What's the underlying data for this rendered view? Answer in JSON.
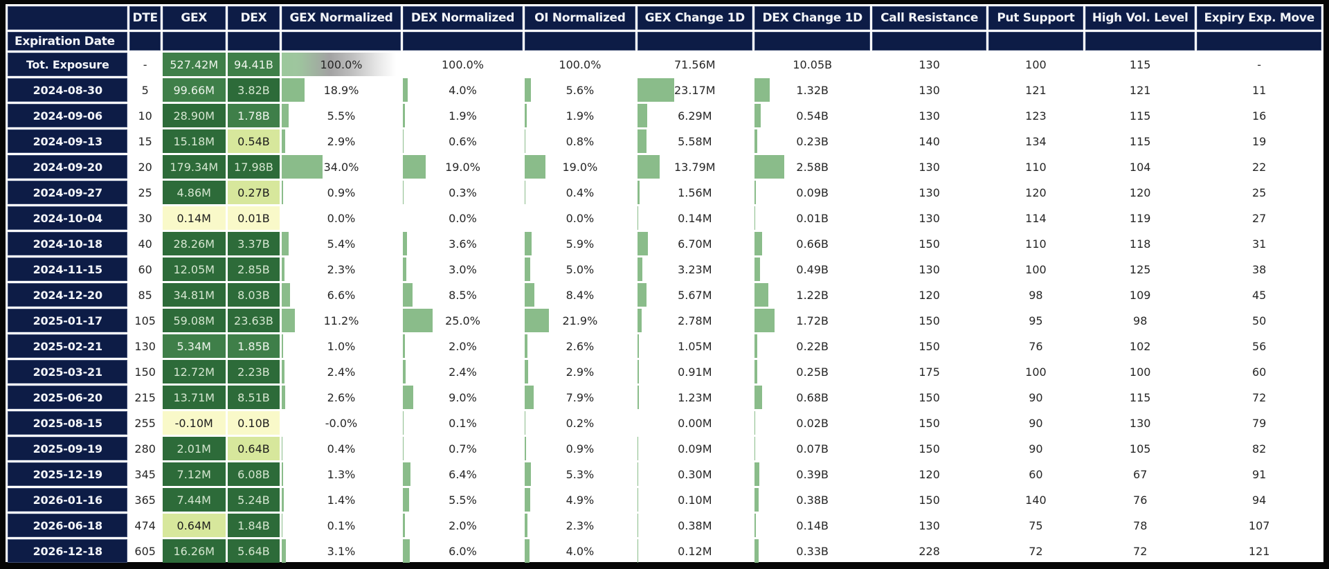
{
  "colors": {
    "navy": "#0d1c46",
    "bar_green": "#8abc8a",
    "frame_black": "#060606",
    "tones": {
      "t0": "#f9f9c9",
      "t1": "#d7e79c",
      "t2": "#3f7f49",
      "t3": "#2d6b39"
    },
    "tone_text": {
      "t0": "#1c1c1c",
      "t1": "#1c1c1c",
      "t2": "#eef5ec",
      "t3": "#d6e7d1"
    }
  },
  "table": {
    "columns": [
      "",
      "DTE",
      "GEX",
      "DEX",
      "GEX Normalized",
      "DEX Normalized",
      "OI Normalized",
      "GEX Change 1D",
      "DEX Change 1D",
      "Call Resistance",
      "Put Support",
      "High Vol. Level",
      "Expiry Exp. Move"
    ],
    "sub_header": "Expiration Date",
    "rows": [
      {
        "label": "Tot. Exposure",
        "dte": "-",
        "gex": {
          "t": "527.42M",
          "tone": "t2"
        },
        "dex": {
          "t": "94.41B",
          "tone": "t2"
        },
        "gexn": {
          "t": "100.0%",
          "bar": 100,
          "grad": true
        },
        "dexn": {
          "t": "100.0%",
          "bar": 0
        },
        "oin": {
          "t": "100.0%",
          "bar": 0
        },
        "gexc": {
          "t": "71.56M",
          "bar": 0
        },
        "dexc": {
          "t": "10.05B",
          "bar": 0
        },
        "call": "130",
        "put": "100",
        "hvl": "115",
        "move": "-"
      },
      {
        "label": "2024-08-30",
        "dte": "5",
        "gex": {
          "t": "99.66M",
          "tone": "t2"
        },
        "dex": {
          "t": "3.82B",
          "tone": "t3"
        },
        "gexn": {
          "t": "18.9%",
          "bar": 18.9
        },
        "dexn": {
          "t": "4.0%",
          "bar": 4.0
        },
        "oin": {
          "t": "5.6%",
          "bar": 5.6
        },
        "gexc": {
          "t": "23.17M",
          "bar": 32.4
        },
        "dexc": {
          "t": "1.32B",
          "bar": 13.1
        },
        "call": "130",
        "put": "121",
        "hvl": "121",
        "move": "11"
      },
      {
        "label": "2024-09-06",
        "dte": "10",
        "gex": {
          "t": "28.90M",
          "tone": "t3"
        },
        "dex": {
          "t": "1.78B",
          "tone": "t2"
        },
        "gexn": {
          "t": "5.5%",
          "bar": 5.5
        },
        "dexn": {
          "t": "1.9%",
          "bar": 1.9
        },
        "oin": {
          "t": "1.9%",
          "bar": 1.9
        },
        "gexc": {
          "t": "6.29M",
          "bar": 8.8
        },
        "dexc": {
          "t": "0.54B",
          "bar": 5.4
        },
        "call": "130",
        "put": "123",
        "hvl": "115",
        "move": "16"
      },
      {
        "label": "2024-09-13",
        "dte": "15",
        "gex": {
          "t": "15.18M",
          "tone": "t3"
        },
        "dex": {
          "t": "0.54B",
          "tone": "t1"
        },
        "gexn": {
          "t": "2.9%",
          "bar": 2.9
        },
        "dexn": {
          "t": "0.6%",
          "bar": 0.6
        },
        "oin": {
          "t": "0.8%",
          "bar": 0.8
        },
        "gexc": {
          "t": "5.58M",
          "bar": 7.8
        },
        "dexc": {
          "t": "0.23B",
          "bar": 2.3
        },
        "call": "140",
        "put": "134",
        "hvl": "115",
        "move": "19"
      },
      {
        "label": "2024-09-20",
        "dte": "20",
        "gex": {
          "t": "179.34M",
          "tone": "t3"
        },
        "dex": {
          "t": "17.98B",
          "tone": "t3"
        },
        "gexn": {
          "t": "34.0%",
          "bar": 34.0
        },
        "dexn": {
          "t": "19.0%",
          "bar": 19.0
        },
        "oin": {
          "t": "19.0%",
          "bar": 19.0
        },
        "gexc": {
          "t": "13.79M",
          "bar": 19.3
        },
        "dexc": {
          "t": "2.58B",
          "bar": 25.7
        },
        "call": "130",
        "put": "110",
        "hvl": "104",
        "move": "22"
      },
      {
        "label": "2024-09-27",
        "dte": "25",
        "gex": {
          "t": "4.86M",
          "tone": "t3"
        },
        "dex": {
          "t": "0.27B",
          "tone": "t1"
        },
        "gexn": {
          "t": "0.9%",
          "bar": 0.9
        },
        "dexn": {
          "t": "0.3%",
          "bar": 0.3
        },
        "oin": {
          "t": "0.4%",
          "bar": 0.4
        },
        "gexc": {
          "t": "1.56M",
          "bar": 2.2
        },
        "dexc": {
          "t": "0.09B",
          "bar": 0.9
        },
        "call": "130",
        "put": "120",
        "hvl": "120",
        "move": "25"
      },
      {
        "label": "2024-10-04",
        "dte": "30",
        "gex": {
          "t": "0.14M",
          "tone": "t0"
        },
        "dex": {
          "t": "0.01B",
          "tone": "t0"
        },
        "gexn": {
          "t": "0.0%",
          "bar": 0
        },
        "dexn": {
          "t": "0.0%",
          "bar": 0
        },
        "oin": {
          "t": "0.0%",
          "bar": 0
        },
        "gexc": {
          "t": "0.14M",
          "bar": 0.2
        },
        "dexc": {
          "t": "0.01B",
          "bar": 0.1
        },
        "call": "130",
        "put": "114",
        "hvl": "119",
        "move": "27"
      },
      {
        "label": "2024-10-18",
        "dte": "40",
        "gex": {
          "t": "28.26M",
          "tone": "t3"
        },
        "dex": {
          "t": "3.37B",
          "tone": "t3"
        },
        "gexn": {
          "t": "5.4%",
          "bar": 5.4
        },
        "dexn": {
          "t": "3.6%",
          "bar": 3.6
        },
        "oin": {
          "t": "5.9%",
          "bar": 5.9
        },
        "gexc": {
          "t": "6.70M",
          "bar": 9.4
        },
        "dexc": {
          "t": "0.66B",
          "bar": 6.6
        },
        "call": "150",
        "put": "110",
        "hvl": "118",
        "move": "31"
      },
      {
        "label": "2024-11-15",
        "dte": "60",
        "gex": {
          "t": "12.05M",
          "tone": "t3"
        },
        "dex": {
          "t": "2.85B",
          "tone": "t3"
        },
        "gexn": {
          "t": "2.3%",
          "bar": 2.3
        },
        "dexn": {
          "t": "3.0%",
          "bar": 3.0
        },
        "oin": {
          "t": "5.0%",
          "bar": 5.0
        },
        "gexc": {
          "t": "3.23M",
          "bar": 4.5
        },
        "dexc": {
          "t": "0.49B",
          "bar": 4.9
        },
        "call": "130",
        "put": "100",
        "hvl": "125",
        "move": "38"
      },
      {
        "label": "2024-12-20",
        "dte": "85",
        "gex": {
          "t": "34.81M",
          "tone": "t3"
        },
        "dex": {
          "t": "8.03B",
          "tone": "t3"
        },
        "gexn": {
          "t": "6.6%",
          "bar": 6.6
        },
        "dexn": {
          "t": "8.5%",
          "bar": 8.5
        },
        "oin": {
          "t": "8.4%",
          "bar": 8.4
        },
        "gexc": {
          "t": "5.67M",
          "bar": 7.9
        },
        "dexc": {
          "t": "1.22B",
          "bar": 12.1
        },
        "call": "120",
        "put": "98",
        "hvl": "109",
        "move": "45"
      },
      {
        "label": "2025-01-17",
        "dte": "105",
        "gex": {
          "t": "59.08M",
          "tone": "t3"
        },
        "dex": {
          "t": "23.63B",
          "tone": "t3"
        },
        "gexn": {
          "t": "11.2%",
          "bar": 11.2
        },
        "dexn": {
          "t": "25.0%",
          "bar": 25.0
        },
        "oin": {
          "t": "21.9%",
          "bar": 21.9
        },
        "gexc": {
          "t": "2.78M",
          "bar": 3.9
        },
        "dexc": {
          "t": "1.72B",
          "bar": 17.1
        },
        "call": "150",
        "put": "95",
        "hvl": "98",
        "move": "50"
      },
      {
        "label": "2025-02-21",
        "dte": "130",
        "gex": {
          "t": "5.34M",
          "tone": "t2"
        },
        "dex": {
          "t": "1.85B",
          "tone": "t2"
        },
        "gexn": {
          "t": "1.0%",
          "bar": 1.0
        },
        "dexn": {
          "t": "2.0%",
          "bar": 2.0
        },
        "oin": {
          "t": "2.6%",
          "bar": 2.6
        },
        "gexc": {
          "t": "1.05M",
          "bar": 1.5
        },
        "dexc": {
          "t": "0.22B",
          "bar": 2.2
        },
        "call": "150",
        "put": "76",
        "hvl": "102",
        "move": "56"
      },
      {
        "label": "2025-03-21",
        "dte": "150",
        "gex": {
          "t": "12.72M",
          "tone": "t3"
        },
        "dex": {
          "t": "2.23B",
          "tone": "t3"
        },
        "gexn": {
          "t": "2.4%",
          "bar": 2.4
        },
        "dexn": {
          "t": "2.4%",
          "bar": 2.4
        },
        "oin": {
          "t": "2.9%",
          "bar": 2.9
        },
        "gexc": {
          "t": "0.91M",
          "bar": 1.3
        },
        "dexc": {
          "t": "0.25B",
          "bar": 2.5
        },
        "call": "175",
        "put": "100",
        "hvl": "100",
        "move": "60"
      },
      {
        "label": "2025-06-20",
        "dte": "215",
        "gex": {
          "t": "13.71M",
          "tone": "t3"
        },
        "dex": {
          "t": "8.51B",
          "tone": "t3"
        },
        "gexn": {
          "t": "2.6%",
          "bar": 2.6
        },
        "dexn": {
          "t": "9.0%",
          "bar": 9.0
        },
        "oin": {
          "t": "7.9%",
          "bar": 7.9
        },
        "gexc": {
          "t": "1.23M",
          "bar": 1.7
        },
        "dexc": {
          "t": "0.68B",
          "bar": 6.8
        },
        "call": "150",
        "put": "90",
        "hvl": "115",
        "move": "72"
      },
      {
        "label": "2025-08-15",
        "dte": "255",
        "gex": {
          "t": "-0.10M",
          "tone": "t0"
        },
        "dex": {
          "t": "0.10B",
          "tone": "t0"
        },
        "gexn": {
          "t": "-0.0%",
          "bar": 0
        },
        "dexn": {
          "t": "0.1%",
          "bar": 0.1
        },
        "oin": {
          "t": "0.2%",
          "bar": 0.2
        },
        "gexc": {
          "t": "0.00M",
          "bar": 0
        },
        "dexc": {
          "t": "0.02B",
          "bar": 0.2
        },
        "call": "150",
        "put": "90",
        "hvl": "130",
        "move": "79"
      },
      {
        "label": "2025-09-19",
        "dte": "280",
        "gex": {
          "t": "2.01M",
          "tone": "t3"
        },
        "dex": {
          "t": "0.64B",
          "tone": "t1"
        },
        "gexn": {
          "t": "0.4%",
          "bar": 0.4
        },
        "dexn": {
          "t": "0.7%",
          "bar": 0.7
        },
        "oin": {
          "t": "0.9%",
          "bar": 0.9
        },
        "gexc": {
          "t": "0.09M",
          "bar": 0.1
        },
        "dexc": {
          "t": "0.07B",
          "bar": 0.7
        },
        "call": "150",
        "put": "90",
        "hvl": "105",
        "move": "82"
      },
      {
        "label": "2025-12-19",
        "dte": "345",
        "gex": {
          "t": "7.12M",
          "tone": "t3"
        },
        "dex": {
          "t": "6.08B",
          "tone": "t3"
        },
        "gexn": {
          "t": "1.3%",
          "bar": 1.3
        },
        "dexn": {
          "t": "6.4%",
          "bar": 6.4
        },
        "oin": {
          "t": "5.3%",
          "bar": 5.3
        },
        "gexc": {
          "t": "0.30M",
          "bar": 0.4
        },
        "dexc": {
          "t": "0.39B",
          "bar": 3.9
        },
        "call": "120",
        "put": "60",
        "hvl": "67",
        "move": "91"
      },
      {
        "label": "2026-01-16",
        "dte": "365",
        "gex": {
          "t": "7.44M",
          "tone": "t3"
        },
        "dex": {
          "t": "5.24B",
          "tone": "t3"
        },
        "gexn": {
          "t": "1.4%",
          "bar": 1.4
        },
        "dexn": {
          "t": "5.5%",
          "bar": 5.5
        },
        "oin": {
          "t": "4.9%",
          "bar": 4.9
        },
        "gexc": {
          "t": "0.10M",
          "bar": 0.1
        },
        "dexc": {
          "t": "0.38B",
          "bar": 3.8
        },
        "call": "150",
        "put": "140",
        "hvl": "76",
        "move": "94"
      },
      {
        "label": "2026-06-18",
        "dte": "474",
        "gex": {
          "t": "0.64M",
          "tone": "t1"
        },
        "dex": {
          "t": "1.84B",
          "tone": "t3"
        },
        "gexn": {
          "t": "0.1%",
          "bar": 0.1
        },
        "dexn": {
          "t": "2.0%",
          "bar": 2.0
        },
        "oin": {
          "t": "2.3%",
          "bar": 2.3
        },
        "gexc": {
          "t": "0.38M",
          "bar": 0.5
        },
        "dexc": {
          "t": "0.14B",
          "bar": 1.4
        },
        "call": "130",
        "put": "75",
        "hvl": "78",
        "move": "107"
      },
      {
        "label": "2026-12-18",
        "dte": "605",
        "gex": {
          "t": "16.26M",
          "tone": "t3"
        },
        "dex": {
          "t": "5.64B",
          "tone": "t3"
        },
        "gexn": {
          "t": "3.1%",
          "bar": 3.1
        },
        "dexn": {
          "t": "6.0%",
          "bar": 6.0
        },
        "oin": {
          "t": "4.0%",
          "bar": 4.0
        },
        "gexc": {
          "t": "0.12M",
          "bar": 0.2
        },
        "dexc": {
          "t": "0.33B",
          "bar": 3.3
        },
        "call": "228",
        "put": "72",
        "hvl": "72",
        "move": "121"
      }
    ]
  }
}
